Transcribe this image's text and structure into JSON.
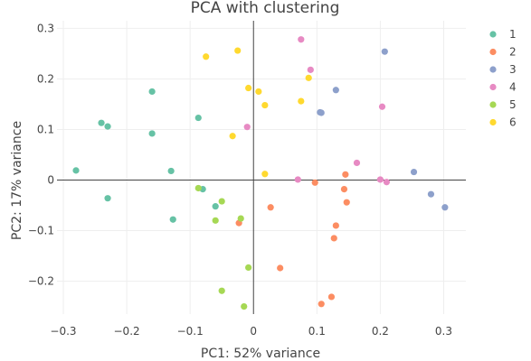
{
  "chart_data": {
    "type": "scatter",
    "title": "PCA with clustering",
    "xlabel": "PC1: 52% variance",
    "ylabel": "PC2: 17% variance",
    "xlim": [
      -0.31,
      0.335
    ],
    "ylim": [
      -0.265,
      0.315
    ],
    "xticks": [
      -0.3,
      -0.2,
      -0.1,
      0,
      0.1,
      0.2,
      0.3
    ],
    "xtick_labels": [
      "−0.3",
      "−0.2",
      "−0.1",
      "0",
      "0.1",
      "0.2",
      "0.3"
    ],
    "yticks": [
      -0.2,
      -0.1,
      0,
      0.1,
      0.2,
      0.3
    ],
    "ytick_labels": [
      "−0.2",
      "−0.1",
      "0",
      "0.1",
      "0.2",
      "0.3"
    ],
    "grid": true,
    "legend_position": "top-right",
    "series": [
      {
        "name": "1",
        "color": "#66c2a5",
        "points": [
          [
            -0.28,
            0.019
          ],
          [
            -0.24,
            0.113
          ],
          [
            -0.23,
            0.106
          ],
          [
            -0.23,
            -0.036
          ],
          [
            -0.16,
            0.175
          ],
          [
            -0.16,
            0.092
          ],
          [
            -0.13,
            0.018
          ],
          [
            -0.127,
            -0.078
          ],
          [
            -0.087,
            0.123
          ],
          [
            -0.08,
            -0.018
          ],
          [
            -0.06,
            -0.052
          ]
        ]
      },
      {
        "name": "2",
        "color": "#fc8d62",
        "points": [
          [
            -0.023,
            -0.085
          ],
          [
            0.027,
            -0.054
          ],
          [
            0.042,
            -0.174
          ],
          [
            0.097,
            -0.005
          ],
          [
            0.107,
            -0.245
          ],
          [
            0.123,
            -0.231
          ],
          [
            0.127,
            -0.115
          ],
          [
            0.13,
            -0.09
          ],
          [
            0.143,
            -0.018
          ],
          [
            0.145,
            0.011
          ],
          [
            0.147,
            -0.044
          ]
        ]
      },
      {
        "name": "3",
        "color": "#8da0cb",
        "points": [
          [
            0.105,
            0.134
          ],
          [
            0.107,
            0.133
          ],
          [
            0.13,
            0.178
          ],
          [
            0.207,
            0.254
          ],
          [
            0.253,
            0.016
          ],
          [
            0.28,
            -0.028
          ],
          [
            0.302,
            -0.054
          ]
        ]
      },
      {
        "name": "4",
        "color": "#e78ac3",
        "points": [
          [
            -0.01,
            0.105
          ],
          [
            0.07,
            0.001
          ],
          [
            0.075,
            0.278
          ],
          [
            0.09,
            0.218
          ],
          [
            0.163,
            0.034
          ],
          [
            0.2,
            0.001
          ],
          [
            0.203,
            0.145
          ],
          [
            0.21,
            -0.004
          ]
        ]
      },
      {
        "name": "5",
        "color": "#a6d854",
        "points": [
          [
            -0.087,
            -0.016
          ],
          [
            -0.06,
            -0.08
          ],
          [
            -0.05,
            -0.042
          ],
          [
            -0.05,
            -0.219
          ],
          [
            -0.02,
            -0.076
          ],
          [
            -0.015,
            -0.25
          ],
          [
            -0.008,
            -0.173
          ]
        ]
      },
      {
        "name": "6",
        "color": "#ffd92f",
        "points": [
          [
            -0.075,
            0.244
          ],
          [
            -0.033,
            0.087
          ],
          [
            -0.025,
            0.256
          ],
          [
            -0.008,
            0.182
          ],
          [
            0.008,
            0.175
          ],
          [
            0.018,
            0.148
          ],
          [
            0.018,
            0.012
          ],
          [
            0.075,
            0.156
          ],
          [
            0.087,
            0.202
          ]
        ]
      }
    ]
  }
}
